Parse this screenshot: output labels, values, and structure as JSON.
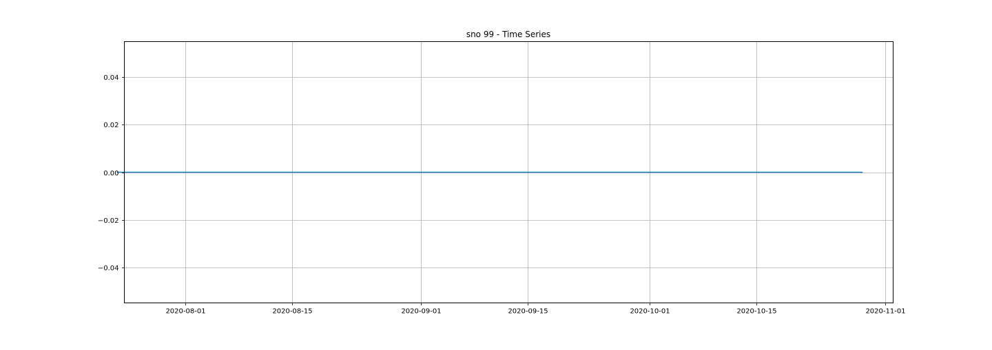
{
  "chart_data": {
    "type": "line",
    "title": "sno 99 - Time Series",
    "xlabel": "",
    "ylabel": "",
    "x_axis_type": "date",
    "xlim": [
      "2020-07-24",
      "2020-11-02"
    ],
    "ylim": [
      -0.055,
      0.055
    ],
    "x_ticks": [
      "2020-08-01",
      "2020-08-15",
      "2020-09-01",
      "2020-09-15",
      "2020-10-01",
      "2020-10-15",
      "2020-11-01"
    ],
    "y_ticks": [
      0.04,
      0.02,
      0.0,
      -0.02,
      -0.04
    ],
    "y_tick_labels": [
      "0.04",
      "0.02",
      "0.00",
      "−0.02",
      "−0.04"
    ],
    "grid": true,
    "legend": "none",
    "series": [
      {
        "color": "#1f77b4",
        "x": [
          "2020-07-23",
          "2020-10-29"
        ],
        "y": [
          0,
          0
        ]
      }
    ]
  }
}
